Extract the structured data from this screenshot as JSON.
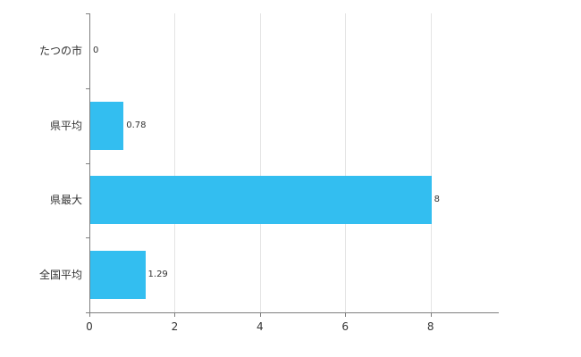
{
  "chart_data": {
    "type": "bar",
    "orientation": "horizontal",
    "title": "",
    "xlabel": "",
    "ylabel": "",
    "categories": [
      "たつの市",
      "県平均",
      "県最大",
      "全国平均"
    ],
    "values": [
      0,
      0.78,
      8,
      1.29
    ],
    "value_labels": [
      "0",
      "0.78",
      "8",
      "1.29"
    ],
    "x_ticks": [
      0,
      2,
      4,
      6,
      8
    ],
    "xlim": [
      0,
      9.6
    ],
    "grid": true,
    "legend": false,
    "bar_color": "#33bef0",
    "axis_color": "#7f7f7f",
    "gridline_color": "#e4e4e4",
    "label_color": "#333333"
  }
}
